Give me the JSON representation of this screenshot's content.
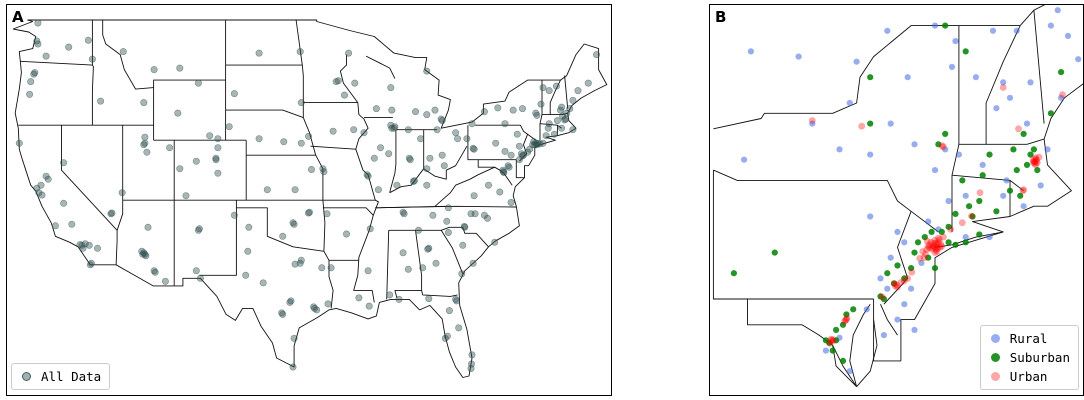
{
  "panels": {
    "a": {
      "label": "A",
      "legend": [
        {
          "label": "All Data",
          "color": "#2f4f4f",
          "alpha": 0.45
        }
      ]
    },
    "b": {
      "label": "B",
      "legend": [
        {
          "label": "Rural",
          "color": "#4169e1",
          "alpha": 0.55
        },
        {
          "label": "Suburban",
          "color": "#008000",
          "alpha": 0.85
        },
        {
          "label": "Urban",
          "color": "#ff0000",
          "alpha": 0.35
        }
      ]
    }
  },
  "map_a_sites": [
    [
      -122.4,
      47.6
    ],
    [
      -122.3,
      47.4
    ],
    [
      -122.6,
      45.5
    ],
    [
      -122.7,
      45.4
    ],
    [
      -123.0,
      44.9
    ],
    [
      -123.1,
      44.05
    ],
    [
      -122.3,
      48.8
    ],
    [
      -121.5,
      46.6
    ],
    [
      -119.3,
      47.2
    ],
    [
      -117.4,
      47.65
    ],
    [
      -117.0,
      46.4
    ],
    [
      -116.2,
      43.6
    ],
    [
      -114.0,
      46.9
    ],
    [
      -111.0,
      45.7
    ],
    [
      -108.5,
      45.8
    ],
    [
      -106.7,
      44.8
    ],
    [
      -112.0,
      43.5
    ],
    [
      -122.4,
      37.8
    ],
    [
      -122.2,
      37.5
    ],
    [
      -121.9,
      37.35
    ],
    [
      -122.0,
      38.0
    ],
    [
      -121.5,
      38.6
    ],
    [
      -121.3,
      38.4
    ],
    [
      -119.8,
      36.8
    ],
    [
      -119.0,
      35.4
    ],
    [
      -118.2,
      34.05
    ],
    [
      -118.0,
      34.0
    ],
    [
      -117.9,
      33.8
    ],
    [
      -117.7,
      34.1
    ],
    [
      -117.3,
      34.0
    ],
    [
      -117.2,
      32.7
    ],
    [
      -117.1,
      32.8
    ],
    [
      -116.5,
      33.8
    ],
    [
      -120.6,
      35.3
    ],
    [
      -124.1,
      40.8
    ],
    [
      -119.8,
      39.5
    ],
    [
      -115.1,
      36.15
    ],
    [
      -115.2,
      36.1
    ],
    [
      -114.1,
      37.5
    ],
    [
      -112.0,
      40.7
    ],
    [
      -111.9,
      40.8
    ],
    [
      -111.9,
      41.2
    ],
    [
      -111.7,
      40.2
    ],
    [
      -109.5,
      40.5
    ],
    [
      -108.5,
      39.1
    ],
    [
      -104.99,
      39.7
    ],
    [
      -105.0,
      39.8
    ],
    [
      -104.8,
      40.5
    ],
    [
      -104.8,
      38.8
    ],
    [
      -106.9,
      39.6
    ],
    [
      -107.9,
      37.3
    ],
    [
      -104.8,
      41.1
    ],
    [
      -108.7,
      42.8
    ],
    [
      -105.6,
      41.3
    ],
    [
      -112.1,
      33.4
    ],
    [
      -112.0,
      33.5
    ],
    [
      -111.9,
      33.4
    ],
    [
      -111.8,
      33.3
    ],
    [
      -112.2,
      33.6
    ],
    [
      -110.9,
      32.2
    ],
    [
      -111.0,
      32.3
    ],
    [
      -109.9,
      31.6
    ],
    [
      -111.6,
      35.2
    ],
    [
      -106.6,
      35.1
    ],
    [
      -106.7,
      35.0
    ],
    [
      -106.9,
      32.3
    ],
    [
      -106.5,
      31.8
    ],
    [
      -103.2,
      36.0
    ],
    [
      -101.8,
      35.2
    ],
    [
      -101.9,
      33.6
    ],
    [
      -102.1,
      32.0
    ],
    [
      -100.4,
      31.5
    ],
    [
      -97.7,
      30.3
    ],
    [
      -97.8,
      30.2
    ],
    [
      -98.5,
      29.4
    ],
    [
      -98.6,
      29.5
    ],
    [
      -96.8,
      32.8
    ],
    [
      -97.3,
      32.75
    ],
    [
      -96.7,
      33.0
    ],
    [
      -95.4,
      29.8
    ],
    [
      -95.2,
      29.7
    ],
    [
      -95.5,
      29.9
    ],
    [
      -94.1,
      30.1
    ],
    [
      -97.4,
      27.8
    ],
    [
      -97.5,
      25.9
    ],
    [
      -94.7,
      32.5
    ],
    [
      -97.5,
      35.5
    ],
    [
      -97.4,
      35.4
    ],
    [
      -96.0,
      36.15
    ],
    [
      -95.9,
      36.2
    ],
    [
      -98.5,
      34.6
    ],
    [
      -97.3,
      37.7
    ],
    [
      -95.7,
      39.05
    ],
    [
      -94.6,
      39.1
    ],
    [
      -94.5,
      38.9
    ],
    [
      -100.0,
      37.7
    ],
    [
      -96.0,
      41.25
    ],
    [
      -96.7,
      40.8
    ],
    [
      -98.4,
      40.9
    ],
    [
      -100.8,
      41.1
    ],
    [
      -103.7,
      41.9
    ],
    [
      -100.8,
      46.8
    ],
    [
      -96.8,
      46.9
    ],
    [
      -103.2,
      44.1
    ],
    [
      -96.7,
      43.5
    ],
    [
      -93.3,
      44.9
    ],
    [
      -93.1,
      44.95
    ],
    [
      -92.1,
      46.8
    ],
    [
      -92.5,
      44.0
    ],
    [
      -91.5,
      44.8
    ],
    [
      -93.6,
      41.6
    ],
    [
      -91.6,
      41.7
    ],
    [
      -90.6,
      41.5
    ],
    [
      -89.4,
      43.1
    ],
    [
      -87.9,
      43.0
    ],
    [
      -88.0,
      44.5
    ],
    [
      -87.7,
      41.8
    ],
    [
      -87.6,
      41.9
    ],
    [
      -87.9,
      41.8
    ],
    [
      -88.0,
      42.0
    ],
    [
      -89.6,
      39.8
    ],
    [
      -89.0,
      40.5
    ],
    [
      -90.2,
      38.6
    ],
    [
      -90.3,
      38.7
    ],
    [
      -88.2,
      40.1
    ],
    [
      -89.2,
      37.7
    ],
    [
      -86.2,
      39.8
    ],
    [
      -86.1,
      39.7
    ],
    [
      -85.1,
      41.1
    ],
    [
      -87.4,
      38.0
    ],
    [
      -86.3,
      41.7
    ],
    [
      -83.0,
      42.3
    ],
    [
      -83.1,
      42.4
    ],
    [
      -85.6,
      42.9
    ],
    [
      -84.5,
      42.7
    ],
    [
      -83.7,
      43.0
    ],
    [
      -84.5,
      45.6
    ],
    [
      -84.5,
      39.1
    ],
    [
      -84.2,
      39.8
    ],
    [
      -83.0,
      40.0
    ],
    [
      -81.7,
      41.5
    ],
    [
      -81.5,
      41.1
    ],
    [
      -80.6,
      41.1
    ],
    [
      -83.5,
      41.7
    ],
    [
      -82.8,
      39.3
    ],
    [
      -85.8,
      38.25
    ],
    [
      -85.7,
      38.3
    ],
    [
      -84.5,
      38.0
    ],
    [
      -83.9,
      36.0
    ],
    [
      -86.8,
      36.2
    ],
    [
      -86.7,
      36.1
    ],
    [
      -90.0,
      35.1
    ],
    [
      -85.3,
      35.0
    ],
    [
      -82.4,
      36.5
    ],
    [
      -86.8,
      33.5
    ],
    [
      -86.3,
      32.4
    ],
    [
      -88.1,
      30.7
    ],
    [
      -90.2,
      32.3
    ],
    [
      -90.1,
      29.95
    ],
    [
      -91.1,
      30.5
    ],
    [
      -93.8,
      32.5
    ],
    [
      -92.3,
      34.75
    ],
    [
      -94.2,
      36.1
    ],
    [
      -84.4,
      33.75
    ],
    [
      -84.3,
      33.8
    ],
    [
      -83.6,
      32.8
    ],
    [
      -81.1,
      32.1
    ],
    [
      -84.9,
      32.5
    ],
    [
      -81.0,
      34.0
    ],
    [
      -80.0,
      32.8
    ],
    [
      -82.4,
      34.85
    ],
    [
      -80.8,
      35.2
    ],
    [
      -80.85,
      35.25
    ],
    [
      -78.6,
      35.8
    ],
    [
      -78.9,
      36.0
    ],
    [
      -79.8,
      36.1
    ],
    [
      -80.2,
      36.1
    ],
    [
      -82.55,
      35.6
    ],
    [
      -77.9,
      34.2
    ],
    [
      -81.6,
      30.3
    ],
    [
      -81.7,
      30.4
    ],
    [
      -82.3,
      29.65
    ],
    [
      -81.4,
      28.5
    ],
    [
      -82.5,
      27.95
    ],
    [
      -82.7,
      27.8
    ],
    [
      -80.2,
      25.8
    ],
    [
      -80.15,
      26.1
    ],
    [
      -80.1,
      26.7
    ],
    [
      -84.3,
      30.45
    ],
    [
      -87.2,
      30.4
    ],
    [
      -77.4,
      37.55
    ],
    [
      -76.3,
      36.85
    ],
    [
      -79.9,
      37.3
    ],
    [
      -78.5,
      38.0
    ],
    [
      -77.05,
      38.9
    ],
    [
      -77.0,
      38.85
    ],
    [
      -77.1,
      39.0
    ],
    [
      -76.6,
      39.3
    ],
    [
      -76.5,
      39.2
    ],
    [
      -75.5,
      39.7
    ],
    [
      -75.2,
      39.95
    ],
    [
      -75.1,
      40.0
    ],
    [
      -75.3,
      40.1
    ],
    [
      -74.2,
      40.7
    ],
    [
      -74.0,
      40.7
    ],
    [
      -73.9,
      40.8
    ],
    [
      -73.8,
      40.7
    ],
    [
      -74.1,
      40.9
    ],
    [
      -73.7,
      40.8
    ],
    [
      -73.5,
      40.75
    ],
    [
      -74.7,
      40.2
    ],
    [
      -74.5,
      40.4
    ],
    [
      -73.2,
      40.8
    ],
    [
      -72.9,
      41.3
    ],
    [
      -72.7,
      41.8
    ],
    [
      -71.4,
      41.8
    ],
    [
      -71.1,
      42.35
    ],
    [
      -71.0,
      42.4
    ],
    [
      -71.3,
      42.6
    ],
    [
      -71.8,
      42.3
    ],
    [
      -72.6,
      42.1
    ],
    [
      -73.8,
      42.65
    ],
    [
      -73.9,
      42.8
    ],
    [
      -76.1,
      43.0
    ],
    [
      -77.6,
      43.15
    ],
    [
      -78.9,
      42.9
    ],
    [
      -75.2,
      43.1
    ],
    [
      -76.9,
      42.1
    ],
    [
      -79.9,
      40.4
    ],
    [
      -80.0,
      40.45
    ],
    [
      -76.9,
      40.25
    ],
    [
      -76.3,
      40.0
    ],
    [
      -75.5,
      40.6
    ],
    [
      -75.7,
      41.4
    ],
    [
      -77.8,
      40.8
    ],
    [
      -80.1,
      42.1
    ],
    [
      -71.5,
      43.0
    ],
    [
      -71.4,
      43.2
    ],
    [
      -70.3,
      43.65
    ],
    [
      -68.8,
      44.8
    ],
    [
      -73.2,
      44.5
    ],
    [
      -72.6,
      44.3
    ],
    [
      -69.8,
      44.3
    ],
    [
      -68.0,
      46.7
    ],
    [
      -70.9,
      42.8
    ],
    [
      -70.3,
      41.7
    ],
    [
      -72.1,
      41.4
    ],
    [
      -71.9,
      44.6
    ],
    [
      -70.6,
      43.1
    ],
    [
      -73.4,
      43.4
    ]
  ],
  "map_b_sites": {
    "rural": [
      [
        -74.0,
        45.0
      ],
      [
        -73.4,
        44.7
      ],
      [
        -72.3,
        44.9
      ],
      [
        -71.6,
        44.9
      ],
      [
        -70.6,
        45.0
      ],
      [
        -70.1,
        44.8
      ],
      [
        -69.5,
        44.95
      ],
      [
        -73.5,
        44.2
      ],
      [
        -72.8,
        44.0
      ],
      [
        -72.0,
        43.9
      ],
      [
        -71.8,
        43.6
      ],
      [
        -72.2,
        43.4
      ],
      [
        -71.2,
        43.9
      ],
      [
        -79.4,
        44.5
      ],
      [
        -78.0,
        44.4
      ],
      [
        -76.3,
        44.3
      ],
      [
        -75.4,
        44.9
      ],
      [
        -76.5,
        43.5
      ],
      [
        -77.6,
        43.1
      ],
      [
        -75.3,
        43.1
      ],
      [
        -75.9,
        42.5
      ],
      [
        -79.6,
        42.4
      ],
      [
        -76.8,
        42.6
      ],
      [
        -74.6,
        42.7
      ],
      [
        -73.7,
        42.6
      ],
      [
        -74.0,
        42.2
      ],
      [
        -73.3,
        42.5
      ],
      [
        -72.6,
        42.3
      ],
      [
        -71.9,
        42.0
      ],
      [
        -72.0,
        41.7
      ],
      [
        -73.1,
        41.7
      ],
      [
        -73.6,
        41.6
      ],
      [
        -75.9,
        41.3
      ],
      [
        -75.1,
        41.0
      ],
      [
        -74.9,
        40.8
      ],
      [
        -74.2,
        41.2
      ],
      [
        -73.9,
        41.05
      ],
      [
        -75.3,
        40.5
      ],
      [
        -75.6,
        40.1
      ],
      [
        -75.4,
        39.9
      ],
      [
        -74.7,
        39.9
      ],
      [
        -74.4,
        40.4
      ],
      [
        -74.9,
        39.6
      ],
      [
        -75.1,
        39.3
      ],
      [
        -74.6,
        39.1
      ],
      [
        -75.5,
        39.0
      ],
      [
        -76.0,
        39.5
      ],
      [
        -77.2,
        38.7
      ],
      [
        -76.5,
        38.3
      ],
      [
        -76.8,
        38.95
      ],
      [
        -71.4,
        41.5
      ],
      [
        -70.9,
        41.9
      ],
      [
        -70.7,
        42.6
      ],
      [
        -71.3,
        43.1
      ],
      [
        -70.3,
        43.6
      ],
      [
        -69.8,
        44.35
      ],
      [
        -70.4,
        45.3
      ],
      [
        -69.3,
        45.6
      ],
      [
        -74.8,
        44.0
      ],
      [
        -73.1,
        40.9
      ],
      [
        -72.4,
        40.9
      ]
    ],
    "suburban": [
      [
        -79.9,
        40.2
      ],
      [
        -78.7,
        40.6
      ],
      [
        -75.9,
        43.1
      ],
      [
        -73.9,
        42.7
      ],
      [
        -73.7,
        42.9
      ],
      [
        -73.7,
        45.0
      ],
      [
        -73.1,
        44.5
      ],
      [
        -70.3,
        44.1
      ],
      [
        -70.6,
        43.3
      ],
      [
        -71.4,
        42.9
      ],
      [
        -71.2,
        42.5
      ],
      [
        -71.3,
        42.3
      ],
      [
        -71.6,
        42.2
      ],
      [
        -71.0,
        42.2
      ],
      [
        -71.1,
        42.6
      ],
      [
        -72.4,
        42.5
      ],
      [
        -72.6,
        42.1
      ],
      [
        -73.2,
        42.0
      ],
      [
        -72.9,
        41.3
      ],
      [
        -72.7,
        41.6
      ],
      [
        -73.0,
        41.5
      ],
      [
        -73.4,
        41.35
      ],
      [
        -73.6,
        41.1
      ],
      [
        -73.8,
        41.0
      ],
      [
        -74.1,
        41.0
      ],
      [
        -74.3,
        40.9
      ],
      [
        -74.5,
        40.8
      ],
      [
        -74.6,
        40.6
      ],
      [
        -74.2,
        40.5
      ],
      [
        -74.0,
        40.3
      ],
      [
        -73.6,
        40.8
      ],
      [
        -73.4,
        40.75
      ],
      [
        -73.1,
        40.8
      ],
      [
        -72.7,
        40.95
      ],
      [
        -74.7,
        40.3
      ],
      [
        -74.9,
        40.1
      ],
      [
        -75.2,
        40.0
      ],
      [
        -75.4,
        40.2
      ],
      [
        -75.1,
        40.35
      ],
      [
        -75.5,
        39.7
      ],
      [
        -75.6,
        39.75
      ],
      [
        -76.4,
        39.5
      ],
      [
        -76.6,
        39.4
      ],
      [
        -76.7,
        39.2
      ],
      [
        -76.9,
        39.1
      ],
      [
        -76.9,
        38.9
      ],
      [
        -77.1,
        38.85
      ],
      [
        -77.2,
        38.9
      ],
      [
        -77.0,
        38.7
      ],
      [
        -76.7,
        38.5
      ],
      [
        -71.8,
        41.8
      ],
      [
        -71.5,
        41.7
      ],
      [
        -72.2,
        41.4
      ],
      [
        -75.9,
        44.0
      ],
      [
        -71.7,
        42.6
      ]
    ],
    "urban": [
      [
        -74.0,
        40.71
      ],
      [
        -73.95,
        40.75
      ],
      [
        -73.9,
        40.8
      ],
      [
        -73.85,
        40.7
      ],
      [
        -74.05,
        40.73
      ],
      [
        -74.1,
        40.67
      ],
      [
        -74.15,
        40.75
      ],
      [
        -74.2,
        40.73
      ],
      [
        -73.98,
        40.65
      ],
      [
        -73.92,
        40.68
      ],
      [
        -74.0,
        40.6
      ],
      [
        -73.87,
        40.85
      ],
      [
        -73.9,
        40.88
      ],
      [
        -74.03,
        40.78
      ],
      [
        -73.96,
        40.69
      ],
      [
        -74.08,
        40.7
      ],
      [
        -74.12,
        40.8
      ],
      [
        -73.8,
        40.72
      ],
      [
        -74.17,
        40.69
      ],
      [
        -74.25,
        40.66
      ],
      [
        -74.28,
        40.57
      ],
      [
        -74.32,
        40.5
      ],
      [
        -74.45,
        40.49
      ],
      [
        -74.68,
        40.22
      ],
      [
        -74.8,
        40.1
      ],
      [
        -74.9,
        40.05
      ],
      [
        -75.16,
        39.95
      ],
      [
        -75.13,
        39.98
      ],
      [
        -75.2,
        40.0
      ],
      [
        -75.1,
        39.93
      ],
      [
        -75.55,
        39.74
      ],
      [
        -76.62,
        39.29
      ],
      [
        -76.6,
        39.3
      ],
      [
        -76.58,
        39.33
      ],
      [
        -76.65,
        39.27
      ],
      [
        -77.03,
        38.9
      ],
      [
        -77.01,
        38.88
      ],
      [
        -77.05,
        38.92
      ],
      [
        -76.99,
        38.91
      ],
      [
        -77.09,
        38.84
      ],
      [
        -71.06,
        42.36
      ],
      [
        -71.1,
        42.37
      ],
      [
        -71.08,
        42.33
      ],
      [
        -71.02,
        42.38
      ],
      [
        -71.05,
        42.3
      ],
      [
        -71.12,
        42.35
      ],
      [
        -71.0,
        42.34
      ],
      [
        -71.03,
        42.41
      ],
      [
        -71.11,
        42.4
      ],
      [
        -71.4,
        41.82
      ],
      [
        -71.42,
        41.8
      ],
      [
        -72.68,
        41.76
      ],
      [
        -72.93,
        41.31
      ],
      [
        -73.2,
        41.18
      ],
      [
        -73.54,
        41.05
      ],
      [
        -73.76,
        42.65
      ],
      [
        -73.79,
        42.67
      ],
      [
        -76.15,
        43.05
      ],
      [
        -77.6,
        43.16
      ],
      [
        -72.0,
        43.8
      ],
      [
        -70.26,
        43.66
      ],
      [
        -71.55,
        43.0
      ],
      [
        -73.97,
        40.78
      ],
      [
        -73.83,
        40.76
      ],
      [
        -74.0,
        40.84
      ],
      [
        -73.94,
        40.62
      ],
      [
        -74.23,
        40.82
      ],
      [
        -74.36,
        40.62
      ],
      [
        -73.75,
        40.9
      ],
      [
        -71.05,
        42.44
      ],
      [
        -70.95,
        42.45
      ],
      [
        -75.0,
        40.02
      ]
    ]
  }
}
